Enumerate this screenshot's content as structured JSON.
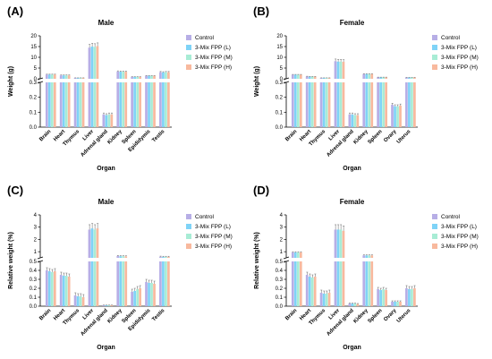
{
  "series_names": [
    "Control",
    "3-Mix FPP (L)",
    "3-Mix FPP (M)",
    "3-Mix FPP (H)"
  ],
  "series_colors": [
    "#b7aee6",
    "#7fd3f7",
    "#a8ecd5",
    "#f8b99e"
  ],
  "chart_data": [
    {
      "letter": "(A)",
      "type": "bar",
      "title": "Male",
      "xlabel": "Organ",
      "ylabel": "Weight (g)",
      "categories": [
        "Brain",
        "Heart",
        "Thymus",
        "Liver",
        "Adrenal gland",
        "Kidney",
        "Spleen",
        "Epididymis",
        "Testis"
      ],
      "axis": {
        "break": true,
        "lower": {
          "range": [
            0,
            0.3
          ],
          "ticks": [
            "0.0",
            "0.1",
            "0.2",
            "0.3"
          ],
          "tick_values": [
            0,
            0.1,
            0.2,
            0.3
          ]
        },
        "upper": {
          "range": [
            0,
            20
          ],
          "ticks": [
            "0",
            "5",
            "10",
            "15",
            "20"
          ],
          "tick_values": [
            0,
            5,
            10,
            15,
            20
          ]
        }
      },
      "series": [
        {
          "name": "Control",
          "values": [
            2.0,
            1.6,
            0.4,
            14.5,
            0.085,
            3.4,
            0.9,
            1.4,
            3.1
          ],
          "errors": [
            0.15,
            0.2,
            0.05,
            1.5,
            0.01,
            0.3,
            0.1,
            0.1,
            0.3
          ]
        },
        {
          "name": "3-Mix FPP (L)",
          "values": [
            2.0,
            1.6,
            0.4,
            15.0,
            0.08,
            3.3,
            0.9,
            1.4,
            3.0
          ],
          "errors": [
            0.15,
            0.2,
            0.05,
            1.5,
            0.01,
            0.3,
            0.1,
            0.1,
            0.3
          ]
        },
        {
          "name": "3-Mix FPP (M)",
          "values": [
            2.0,
            1.6,
            0.4,
            14.8,
            0.085,
            3.3,
            0.9,
            1.4,
            3.1
          ],
          "errors": [
            0.15,
            0.2,
            0.05,
            1.5,
            0.01,
            0.3,
            0.1,
            0.1,
            0.3
          ]
        },
        {
          "name": "3-Mix FPP (H)",
          "values": [
            2.0,
            1.6,
            0.4,
            15.2,
            0.085,
            3.3,
            0.9,
            1.4,
            3.1
          ],
          "errors": [
            0.15,
            0.2,
            0.05,
            1.5,
            0.01,
            0.3,
            0.1,
            0.1,
            0.3
          ]
        }
      ]
    },
    {
      "letter": "(B)",
      "type": "bar",
      "title": "Female",
      "xlabel": "Organ",
      "ylabel": "Weight (g)",
      "categories": [
        "Brain",
        "Heart",
        "Thymus",
        "Liver",
        "Adrenal gland",
        "Kidney",
        "Spleen",
        "Ovary",
        "Uterus"
      ],
      "axis": {
        "break": true,
        "lower": {
          "range": [
            0,
            0.3
          ],
          "ticks": [
            "0.0",
            "0.1",
            "0.2",
            "0.3"
          ],
          "tick_values": [
            0,
            0.1,
            0.2,
            0.3
          ]
        },
        "upper": {
          "range": [
            0,
            20
          ],
          "ticks": [
            "0",
            "5",
            "10",
            "15",
            "20"
          ],
          "tick_values": [
            0,
            5,
            10,
            15,
            20
          ]
        }
      },
      "series": [
        {
          "name": "Control",
          "values": [
            1.9,
            1.1,
            0.4,
            8.2,
            0.085,
            2.2,
            0.7,
            0.15,
            0.6
          ],
          "errors": [
            0.15,
            0.1,
            0.05,
            1.0,
            0.01,
            0.2,
            0.08,
            0.01,
            0.05
          ]
        },
        {
          "name": "3-Mix FPP (L)",
          "values": [
            1.9,
            1.0,
            0.4,
            8.0,
            0.085,
            2.2,
            0.7,
            0.14,
            0.6
          ],
          "errors": [
            0.15,
            0.1,
            0.05,
            1.0,
            0.01,
            0.2,
            0.08,
            0.01,
            0.05
          ]
        },
        {
          "name": "3-Mix FPP (M)",
          "values": [
            1.9,
            1.0,
            0.4,
            8.0,
            0.08,
            2.2,
            0.7,
            0.14,
            0.6
          ],
          "errors": [
            0.15,
            0.1,
            0.05,
            1.0,
            0.01,
            0.2,
            0.08,
            0.01,
            0.05
          ]
        },
        {
          "name": "3-Mix FPP (H)",
          "values": [
            1.9,
            1.0,
            0.4,
            7.9,
            0.08,
            2.2,
            0.7,
            0.145,
            0.6
          ],
          "errors": [
            0.15,
            0.1,
            0.05,
            1.0,
            0.01,
            0.2,
            0.08,
            0.01,
            0.05
          ]
        }
      ]
    },
    {
      "letter": "(C)",
      "type": "bar",
      "title": "Male",
      "xlabel": "Organ",
      "ylabel": "Relative weight (%)",
      "categories": [
        "Brain",
        "Heart",
        "Thymus",
        "Liver",
        "Adrenal gland",
        "Kidney",
        "Spleen",
        "Epididymis",
        "Testis"
      ],
      "axis": {
        "break": true,
        "lower": {
          "range": [
            0,
            0.5
          ],
          "ticks": [
            "0.0",
            "0.1",
            "0.2",
            "0.3",
            "0.4",
            "0.5"
          ],
          "tick_values": [
            0,
            0.1,
            0.2,
            0.3,
            0.4,
            0.5
          ]
        },
        "upper": {
          "range": [
            0.5,
            4
          ],
          "ticks": [
            "1",
            "2",
            "3",
            "4"
          ],
          "tick_values": [
            1,
            2,
            3,
            4
          ]
        }
      },
      "series": [
        {
          "name": "Control",
          "values": [
            0.4,
            0.35,
            0.12,
            2.8,
            0.01,
            0.65,
            0.16,
            0.27,
            0.59
          ],
          "errors": [
            0.03,
            0.03,
            0.03,
            0.4,
            0.002,
            0.05,
            0.03,
            0.03,
            0.05
          ]
        },
        {
          "name": "3-Mix FPP (L)",
          "values": [
            0.39,
            0.34,
            0.11,
            2.9,
            0.01,
            0.63,
            0.17,
            0.26,
            0.58
          ],
          "errors": [
            0.03,
            0.03,
            0.03,
            0.4,
            0.002,
            0.05,
            0.03,
            0.03,
            0.05
          ]
        },
        {
          "name": "3-Mix FPP (M)",
          "values": [
            0.38,
            0.34,
            0.11,
            2.8,
            0.01,
            0.63,
            0.19,
            0.26,
            0.58
          ],
          "errors": [
            0.03,
            0.03,
            0.03,
            0.4,
            0.002,
            0.05,
            0.03,
            0.03,
            0.05
          ]
        },
        {
          "name": "3-Mix FPP (H)",
          "values": [
            0.39,
            0.33,
            0.1,
            2.9,
            0.01,
            0.62,
            0.2,
            0.25,
            0.58
          ],
          "errors": [
            0.03,
            0.03,
            0.03,
            0.4,
            0.002,
            0.05,
            0.03,
            0.03,
            0.05
          ]
        }
      ]
    },
    {
      "letter": "(D)",
      "type": "bar",
      "title": "Female",
      "xlabel": "Organ",
      "ylabel": "Relative weight (%)",
      "categories": [
        "Brain",
        "Heart",
        "Thymus",
        "Liver",
        "Adrenal gland",
        "Kidney",
        "Spleen",
        "Ovary",
        "Uterus"
      ],
      "axis": {
        "break": true,
        "lower": {
          "range": [
            0,
            0.5
          ],
          "ticks": [
            "0.0",
            "0.1",
            "0.2",
            "0.3",
            "0.4",
            "0.5"
          ],
          "tick_values": [
            0,
            0.1,
            0.2,
            0.3,
            0.4,
            0.5
          ]
        },
        "upper": {
          "range": [
            0.5,
            4
          ],
          "ticks": [
            "1",
            "2",
            "3",
            "4"
          ],
          "tick_values": [
            1,
            2,
            3,
            4
          ]
        }
      },
      "series": [
        {
          "name": "Control",
          "values": [
            0.95,
            0.35,
            0.15,
            2.8,
            0.03,
            0.7,
            0.19,
            0.05,
            0.2
          ],
          "errors": [
            0.05,
            0.03,
            0.03,
            0.4,
            0.005,
            0.05,
            0.02,
            0.01,
            0.03
          ]
        },
        {
          "name": "3-Mix FPP (L)",
          "values": [
            0.95,
            0.33,
            0.14,
            2.8,
            0.03,
            0.7,
            0.18,
            0.05,
            0.19
          ],
          "errors": [
            0.05,
            0.03,
            0.03,
            0.4,
            0.005,
            0.05,
            0.02,
            0.01,
            0.03
          ]
        },
        {
          "name": "3-Mix FPP (M)",
          "values": [
            0.95,
            0.32,
            0.14,
            2.8,
            0.03,
            0.7,
            0.19,
            0.05,
            0.19
          ],
          "errors": [
            0.05,
            0.03,
            0.03,
            0.4,
            0.005,
            0.05,
            0.02,
            0.01,
            0.03
          ]
        },
        {
          "name": "3-Mix FPP (H)",
          "values": [
            0.95,
            0.33,
            0.15,
            2.7,
            0.025,
            0.7,
            0.18,
            0.05,
            0.2
          ],
          "errors": [
            0.05,
            0.03,
            0.03,
            0.4,
            0.005,
            0.05,
            0.02,
            0.01,
            0.03
          ]
        }
      ]
    }
  ]
}
